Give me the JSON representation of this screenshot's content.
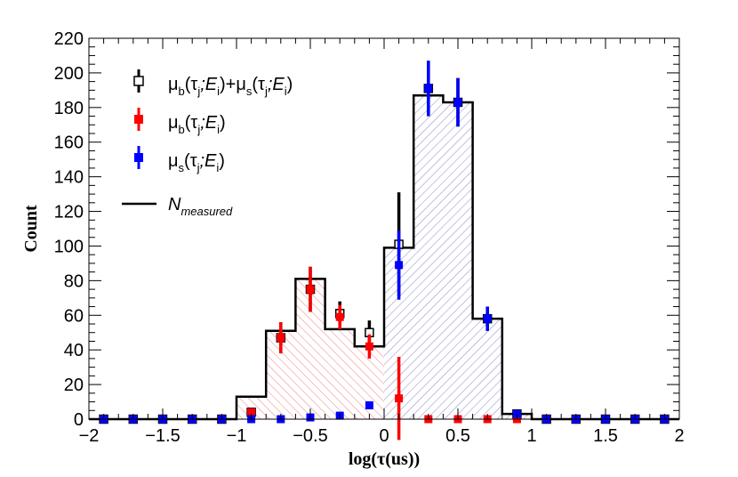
{
  "chart_data": {
    "type": "histogram",
    "xlabel": "log(τ(us))",
    "ylabel": "Count",
    "xlim": [
      -2,
      2
    ],
    "ylim": [
      0,
      220
    ],
    "xticks": [
      "−2",
      "−1.5",
      "−1",
      "−0.5",
      "0",
      "0.5",
      "1",
      "1.5",
      "2"
    ],
    "yticks": [
      "0",
      "20",
      "40",
      "60",
      "80",
      "100",
      "120",
      "140",
      "160",
      "180",
      "200",
      "220"
    ],
    "grid": false,
    "legend_position": "top-left",
    "bin_edges": [
      -2.0,
      -1.8,
      -1.6,
      -1.4,
      -1.2,
      -1.0,
      -0.8,
      -0.6,
      -0.4,
      -0.2,
      0.0,
      0.2,
      0.4,
      0.6,
      0.8,
      1.0,
      1.2,
      1.4,
      1.6,
      1.8,
      2.0
    ],
    "x": [
      -1.9,
      -1.7,
      -1.5,
      -1.3,
      -1.1,
      -0.9,
      -0.7,
      -0.5,
      -0.3,
      -0.1,
      0.1,
      0.3,
      0.5,
      0.7,
      0.9,
      1.1,
      1.3,
      1.5,
      1.7,
      1.9
    ],
    "series": [
      {
        "name": "N_measured",
        "style": "step",
        "color": "#000000",
        "values": [
          0,
          0,
          0,
          0,
          0,
          13,
          51,
          81,
          52,
          42,
          99,
          187,
          183,
          58,
          3,
          0,
          0,
          0,
          0,
          0
        ]
      },
      {
        "name": "μ_b(τ_j;E_i)+μ_s(τ_j;E_i)",
        "style": "open-marker",
        "color": "#000000",
        "values": [
          0,
          0,
          0,
          0,
          0,
          4,
          47,
          75,
          61,
          50,
          101,
          191,
          183,
          58,
          3,
          0,
          0,
          0,
          0,
          0
        ],
        "errors": [
          0,
          0,
          0,
          0,
          0,
          2,
          9,
          13,
          7,
          7,
          30,
          16,
          14,
          7,
          1,
          0,
          0,
          0,
          0,
          0
        ]
      },
      {
        "name": "μ_b(τ_j;E_i)",
        "style": "filled-marker",
        "color": "#ff0000",
        "values": [
          0,
          0,
          0,
          0,
          0,
          4,
          47,
          75,
          59,
          42,
          12,
          0,
          0,
          0,
          0,
          0,
          0,
          0,
          0,
          0
        ],
        "errors": [
          0,
          0,
          0,
          0,
          0,
          2,
          9,
          13,
          7,
          7,
          24,
          0,
          0,
          0,
          0,
          0,
          0,
          0,
          0,
          0
        ]
      },
      {
        "name": "μ_s(τ_j;E_i)",
        "style": "filled-marker",
        "color": "#0000ff",
        "values": [
          0,
          0,
          0,
          0,
          0,
          0,
          0,
          1,
          2,
          8,
          89,
          191,
          183,
          58,
          3,
          0,
          0,
          0,
          0,
          0
        ],
        "errors": [
          0,
          0,
          0,
          0,
          0,
          0,
          0,
          0,
          1,
          2,
          20,
          16,
          14,
          7,
          1,
          0,
          0,
          0,
          0,
          0
        ]
      }
    ],
    "colors": {
      "background_fill": "#ff9999",
      "signal_fill": "#9999cc"
    }
  },
  "legend": {
    "entry1": {
      "mu1": "μ",
      "b": "b",
      "p1": "(τ",
      "j1": "j",
      "semi1": ";E",
      "i1": "i",
      "plus": ")+μ",
      "s": "s",
      "p2": "(τ",
      "j2": "j",
      "semi2": ";E",
      "i2": "i",
      "close": ")"
    },
    "entry2": {
      "mu": "μ",
      "b": "b",
      "p": "(τ",
      "j": "j",
      "semi": ";E",
      "i": "i",
      "close": ")"
    },
    "entry3": {
      "mu": "μ",
      "s": "s",
      "p": "(τ",
      "j": "j",
      "semi": ";E",
      "i": "i",
      "close": ")"
    },
    "entry4": {
      "N": "N",
      "sub": "measured"
    }
  }
}
